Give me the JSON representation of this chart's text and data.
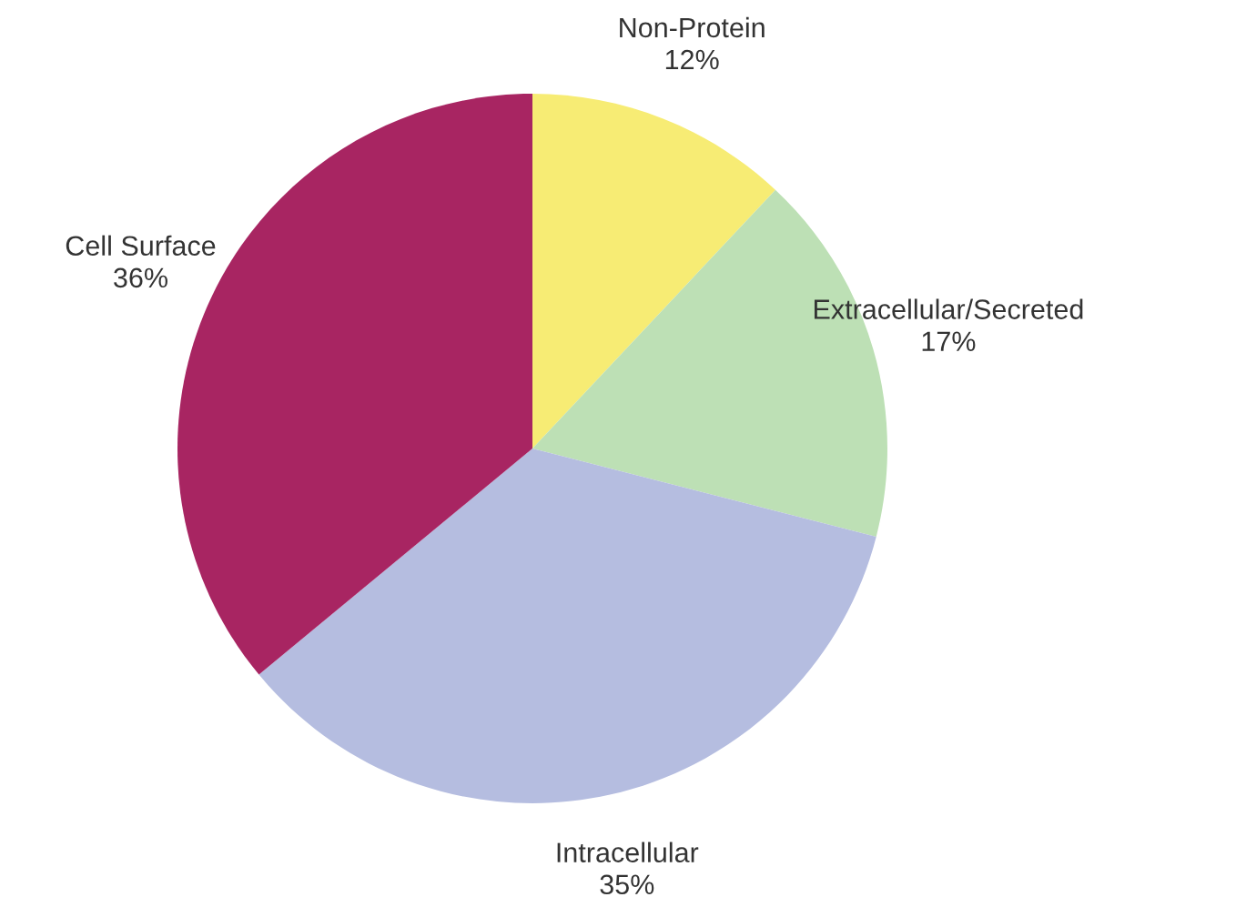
{
  "chart_data": {
    "type": "pie",
    "categories": [
      "Non-Protein",
      "Extracellular/Secreted",
      "Intracellular",
      "Cell Surface"
    ],
    "values": [
      12,
      17,
      35,
      36
    ],
    "value_labels": [
      "12%",
      "17%",
      "35%",
      "36%"
    ],
    "colors": [
      "#f7ec74",
      "#bde0b5",
      "#b5bde0",
      "#a82562"
    ],
    "legend": false
  }
}
